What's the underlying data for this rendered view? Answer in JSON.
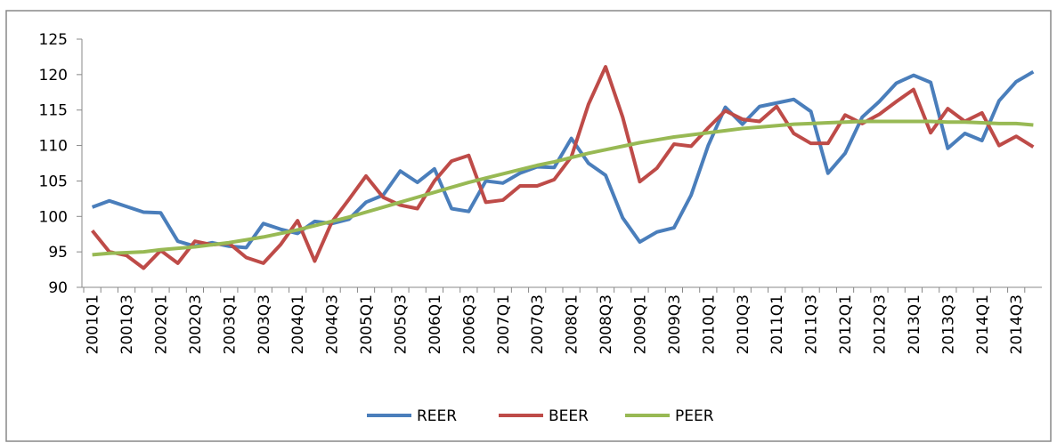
{
  "chart_data": {
    "type": "line",
    "categories": [
      "2001Q1",
      null,
      "2001Q3",
      null,
      "2002Q1",
      null,
      "2002Q3",
      null,
      "2003Q1",
      null,
      "2003Q3",
      null,
      "2004Q1",
      null,
      "2004Q3",
      null,
      "2005Q1",
      null,
      "2005Q3",
      null,
      "2006Q1",
      null,
      "2006Q3",
      null,
      "2007Q1",
      null,
      "2007Q3",
      null,
      "2008Q1",
      null,
      "2008Q3",
      null,
      "2009Q1",
      null,
      "2009Q3",
      null,
      "2010Q1",
      null,
      "2010Q3",
      null,
      "2011Q1",
      null,
      "2011Q3",
      null,
      "2012Q1",
      null,
      "2012Q3",
      null,
      "2013Q1",
      null,
      "2013Q3",
      null,
      "2014Q1",
      null,
      "2014Q3",
      null
    ],
    "series": [
      {
        "name": "REER",
        "color": "#4a7ebb",
        "values": [
          101.3,
          102.2,
          101.4,
          100.6,
          100.5,
          96.5,
          95.8,
          96.3,
          95.8,
          95.6,
          99,
          98.2,
          97.6,
          99.3,
          99,
          99.6,
          102,
          103,
          106.4,
          104.8,
          106.7,
          101.1,
          100.7,
          105,
          104.7,
          106.1,
          107,
          106.9,
          111,
          107.5,
          105.8,
          99.8,
          96.4,
          97.8,
          98.4,
          103,
          110,
          115.4,
          113,
          115.5,
          116,
          116.5,
          114.8,
          106.1,
          108.9,
          114,
          116.2,
          118.8,
          119.9,
          118.9,
          109.6,
          111.7,
          110.7,
          116.3,
          119,
          120.4
        ]
      },
      {
        "name": "BEER",
        "color": "#be4b48",
        "values": [
          98,
          95,
          94.5,
          92.7,
          95.2,
          93.4,
          96.5,
          96,
          96.2,
          94.2,
          93.4,
          96,
          99.4,
          93.7,
          99.2,
          102.4,
          105.7,
          102.7,
          101.6,
          101.1,
          105,
          107.8,
          108.6,
          102,
          102.3,
          104.3,
          104.3,
          105.2,
          108.4,
          115.8,
          121.1,
          114,
          104.9,
          106.8,
          110.2,
          109.9,
          112.5,
          114.9,
          113.7,
          113.4,
          115.5,
          111.7,
          110.3,
          110.3,
          114.3,
          113.1,
          114.4,
          116.2,
          117.9,
          111.8,
          115.2,
          113.4,
          114.6,
          110,
          111.3,
          109.8
        ]
      },
      {
        "name": "PEER",
        "color": "#98b954",
        "values": [
          94.6,
          94.8,
          94.9,
          95,
          95.3,
          95.5,
          95.7,
          96,
          96.3,
          96.7,
          97.1,
          97.6,
          98.1,
          98.7,
          99.3,
          99.9,
          100.6,
          101.3,
          102,
          102.7,
          103.4,
          104.1,
          104.8,
          105.4,
          106,
          106.6,
          107.2,
          107.7,
          108.3,
          108.9,
          109.4,
          109.9,
          110.4,
          110.8,
          111.2,
          111.5,
          111.8,
          112.1,
          112.4,
          112.6,
          112.8,
          113,
          113.1,
          113.2,
          113.3,
          113.4,
          113.4,
          113.4,
          113.4,
          113.4,
          113.3,
          113.3,
          113.2,
          113.1,
          113.1,
          112.9
        ]
      }
    ],
    "ylim": [
      90,
      125
    ],
    "yticks": [
      90,
      95,
      100,
      105,
      110,
      115,
      120,
      125
    ],
    "grid": false,
    "legend": "bottom"
  }
}
